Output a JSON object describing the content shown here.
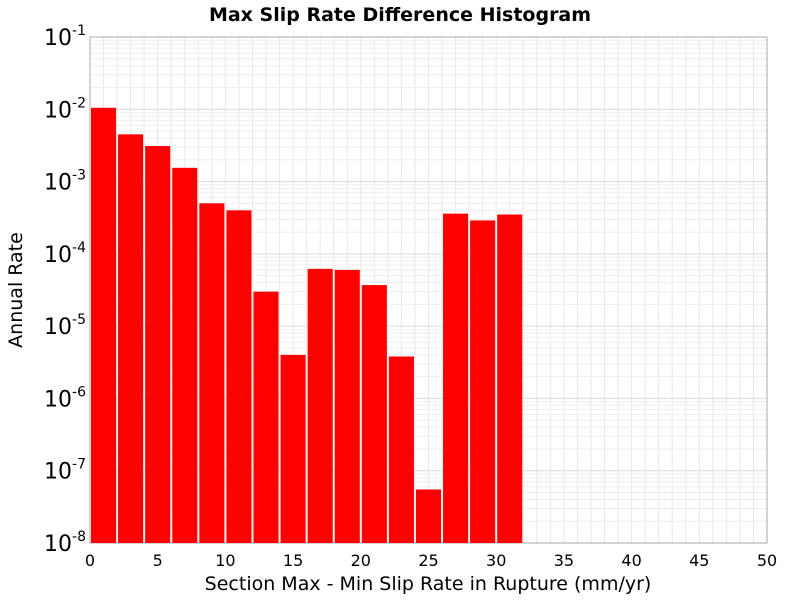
{
  "chart_data": {
    "type": "bar",
    "title": "Max Slip Rate Difference Histogram",
    "xlabel": "Section Max - Min Slip Rate in Rupture (mm/yr)",
    "ylabel": "Annual Rate",
    "yscale": "log",
    "xlim": [
      0,
      50
    ],
    "ylim": [
      1e-08,
      0.1
    ],
    "bin_width": 2,
    "grid": true,
    "bar_color": "#ff0000",
    "x_ticks": [
      "0",
      "5",
      "10",
      "15",
      "20",
      "25",
      "30",
      "35",
      "40",
      "45",
      "50"
    ],
    "y_ticks": [
      {
        "base": "10",
        "exp": "-8"
      },
      {
        "base": "10",
        "exp": "-7"
      },
      {
        "base": "10",
        "exp": "-6"
      },
      {
        "base": "10",
        "exp": "-5"
      },
      {
        "base": "10",
        "exp": "-4"
      },
      {
        "base": "10",
        "exp": "-3"
      },
      {
        "base": "10",
        "exp": "-2"
      },
      {
        "base": "10",
        "exp": "-1"
      }
    ],
    "bins": [
      {
        "x0": 0,
        "x1": 2,
        "value": 0.0105
      },
      {
        "x0": 2,
        "x1": 4,
        "value": 0.0045
      },
      {
        "x0": 4,
        "x1": 6,
        "value": 0.0031
      },
      {
        "x0": 6,
        "x1": 8,
        "value": 0.00155
      },
      {
        "x0": 8,
        "x1": 10,
        "value": 0.0005
      },
      {
        "x0": 10,
        "x1": 12,
        "value": 0.0004
      },
      {
        "x0": 12,
        "x1": 14,
        "value": 3e-05
      },
      {
        "x0": 14,
        "x1": 16,
        "value": 4e-06
      },
      {
        "x0": 16,
        "x1": 18,
        "value": 6.2e-05
      },
      {
        "x0": 18,
        "x1": 20,
        "value": 6e-05
      },
      {
        "x0": 20,
        "x1": 22,
        "value": 3.7e-05
      },
      {
        "x0": 22,
        "x1": 24,
        "value": 3.8e-06
      },
      {
        "x0": 24,
        "x1": 26,
        "value": 5.5e-08
      },
      {
        "x0": 26,
        "x1": 28,
        "value": 0.00036
      },
      {
        "x0": 28,
        "x1": 30,
        "value": 0.00029
      },
      {
        "x0": 30,
        "x1": 32,
        "value": 0.00035
      }
    ]
  }
}
